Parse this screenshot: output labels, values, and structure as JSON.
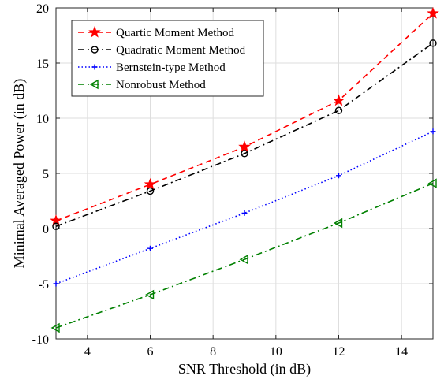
{
  "chart_data": {
    "type": "line",
    "title": "",
    "xlabel": "SNR Threshold (in dB)",
    "ylabel": "Minimal Averaged Power (in dB)",
    "xlim": [
      3,
      15
    ],
    "ylim": [
      -10,
      20
    ],
    "xticks": [
      4,
      6,
      8,
      10,
      12,
      14
    ],
    "yticks": [
      -10,
      -5,
      0,
      5,
      10,
      15,
      20
    ],
    "grid": true,
    "legend_position": "top-left",
    "x": [
      3,
      6,
      9,
      12,
      15
    ],
    "series": [
      {
        "name": "Quartic Moment Method",
        "values": [
          0.7,
          4.0,
          7.4,
          11.6,
          19.5
        ],
        "color": "#ff0000",
        "line_style": "dashed",
        "marker": "star"
      },
      {
        "name": "Quadratic Moment Method",
        "values": [
          0.2,
          3.4,
          6.8,
          10.7,
          16.8
        ],
        "color": "#000000",
        "line_style": "dash-dot",
        "marker": "circle"
      },
      {
        "name": "Bernstein-type Method",
        "values": [
          -5.0,
          -1.8,
          1.4,
          4.8,
          8.8
        ],
        "color": "#0000ff",
        "line_style": "dotted",
        "marker": "plus"
      },
      {
        "name": "Nonrobust Method",
        "values": [
          -9.0,
          -6.0,
          -2.8,
          0.5,
          4.1
        ],
        "color": "#008000",
        "line_style": "dash-dot",
        "marker": "triangle-left"
      }
    ]
  }
}
